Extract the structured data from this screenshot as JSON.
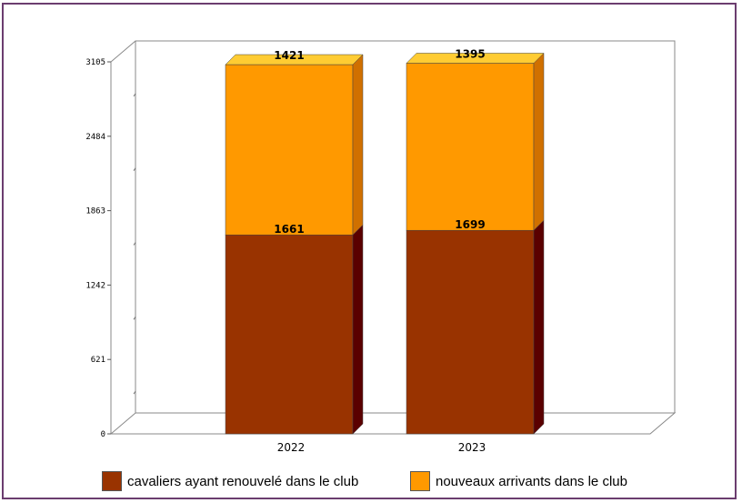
{
  "chart_data": {
    "type": "bar",
    "stacked": true,
    "three_d": true,
    "categories": [
      "2022",
      "2023"
    ],
    "series": [
      {
        "name": "cavaliers ayant renouvelé dans le club",
        "values": [
          1661,
          1699
        ],
        "color": "#993300",
        "side_color": "#5a0000"
      },
      {
        "name": "nouveaux arrivants dans le club",
        "values": [
          1421,
          1395
        ],
        "color": "#ff9900",
        "side_color": "#d07000",
        "top_color": "#ffcc33"
      }
    ],
    "y_ticks": [
      "0",
      "621",
      "1242",
      "1863",
      "2484",
      "3105"
    ],
    "ylim": [
      0,
      3105
    ],
    "legend_position": "bottom",
    "grid": false
  }
}
